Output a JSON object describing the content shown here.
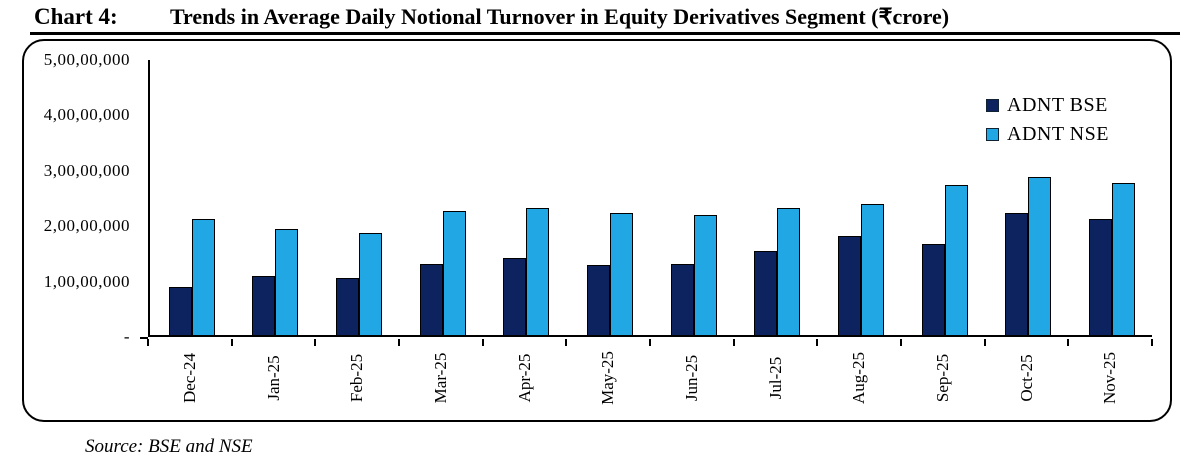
{
  "title": {
    "prefix": "Chart 4:",
    "text": "Trends in Average Daily Notional Turnover in Equity Derivatives Segment (₹crore)"
  },
  "source": "Source: BSE and NSE",
  "colors": {
    "bse_bar": "#0d2360",
    "nse_bar": "#22a7e5",
    "axis": "#000000"
  },
  "chart_data": {
    "type": "bar",
    "title": "Trends in Average Daily Notional Turnover in Equity Derivatives Segment (₹crore)",
    "categories": [
      "Dec-24",
      "Jan-25",
      "Feb-25",
      "Mar-25",
      "Apr-25",
      "May-25",
      "Jun-25",
      "Jul-25",
      "Aug-25",
      "Sep-25",
      "Oct-25",
      "Nov-25"
    ],
    "series": [
      {
        "name": "ADNT BSE",
        "color": "#0d2360",
        "values": [
          8600000,
          10600000,
          10300000,
          12900000,
          13900000,
          12600000,
          12800000,
          15200000,
          17800000,
          16500000,
          22100000,
          20900000
        ]
      },
      {
        "name": "ADNT NSE",
        "color": "#22a7e5",
        "values": [
          21000000,
          19200000,
          18400000,
          22400000,
          22900000,
          22000000,
          21700000,
          23000000,
          23600000,
          27000000,
          28500000,
          27400000
        ]
      }
    ],
    "ylim": [
      0,
      50000000
    ],
    "ytick_values": [
      0,
      10000000,
      20000000,
      30000000,
      40000000,
      50000000
    ],
    "ytick_labels": [
      "-",
      "1,00,00,000",
      "2,00,00,000",
      "3,00,00,000",
      "4,00,00,000",
      "5,00,00,000"
    ],
    "xlabel": "",
    "ylabel": "",
    "grid": false,
    "legend_position": "top-right"
  }
}
